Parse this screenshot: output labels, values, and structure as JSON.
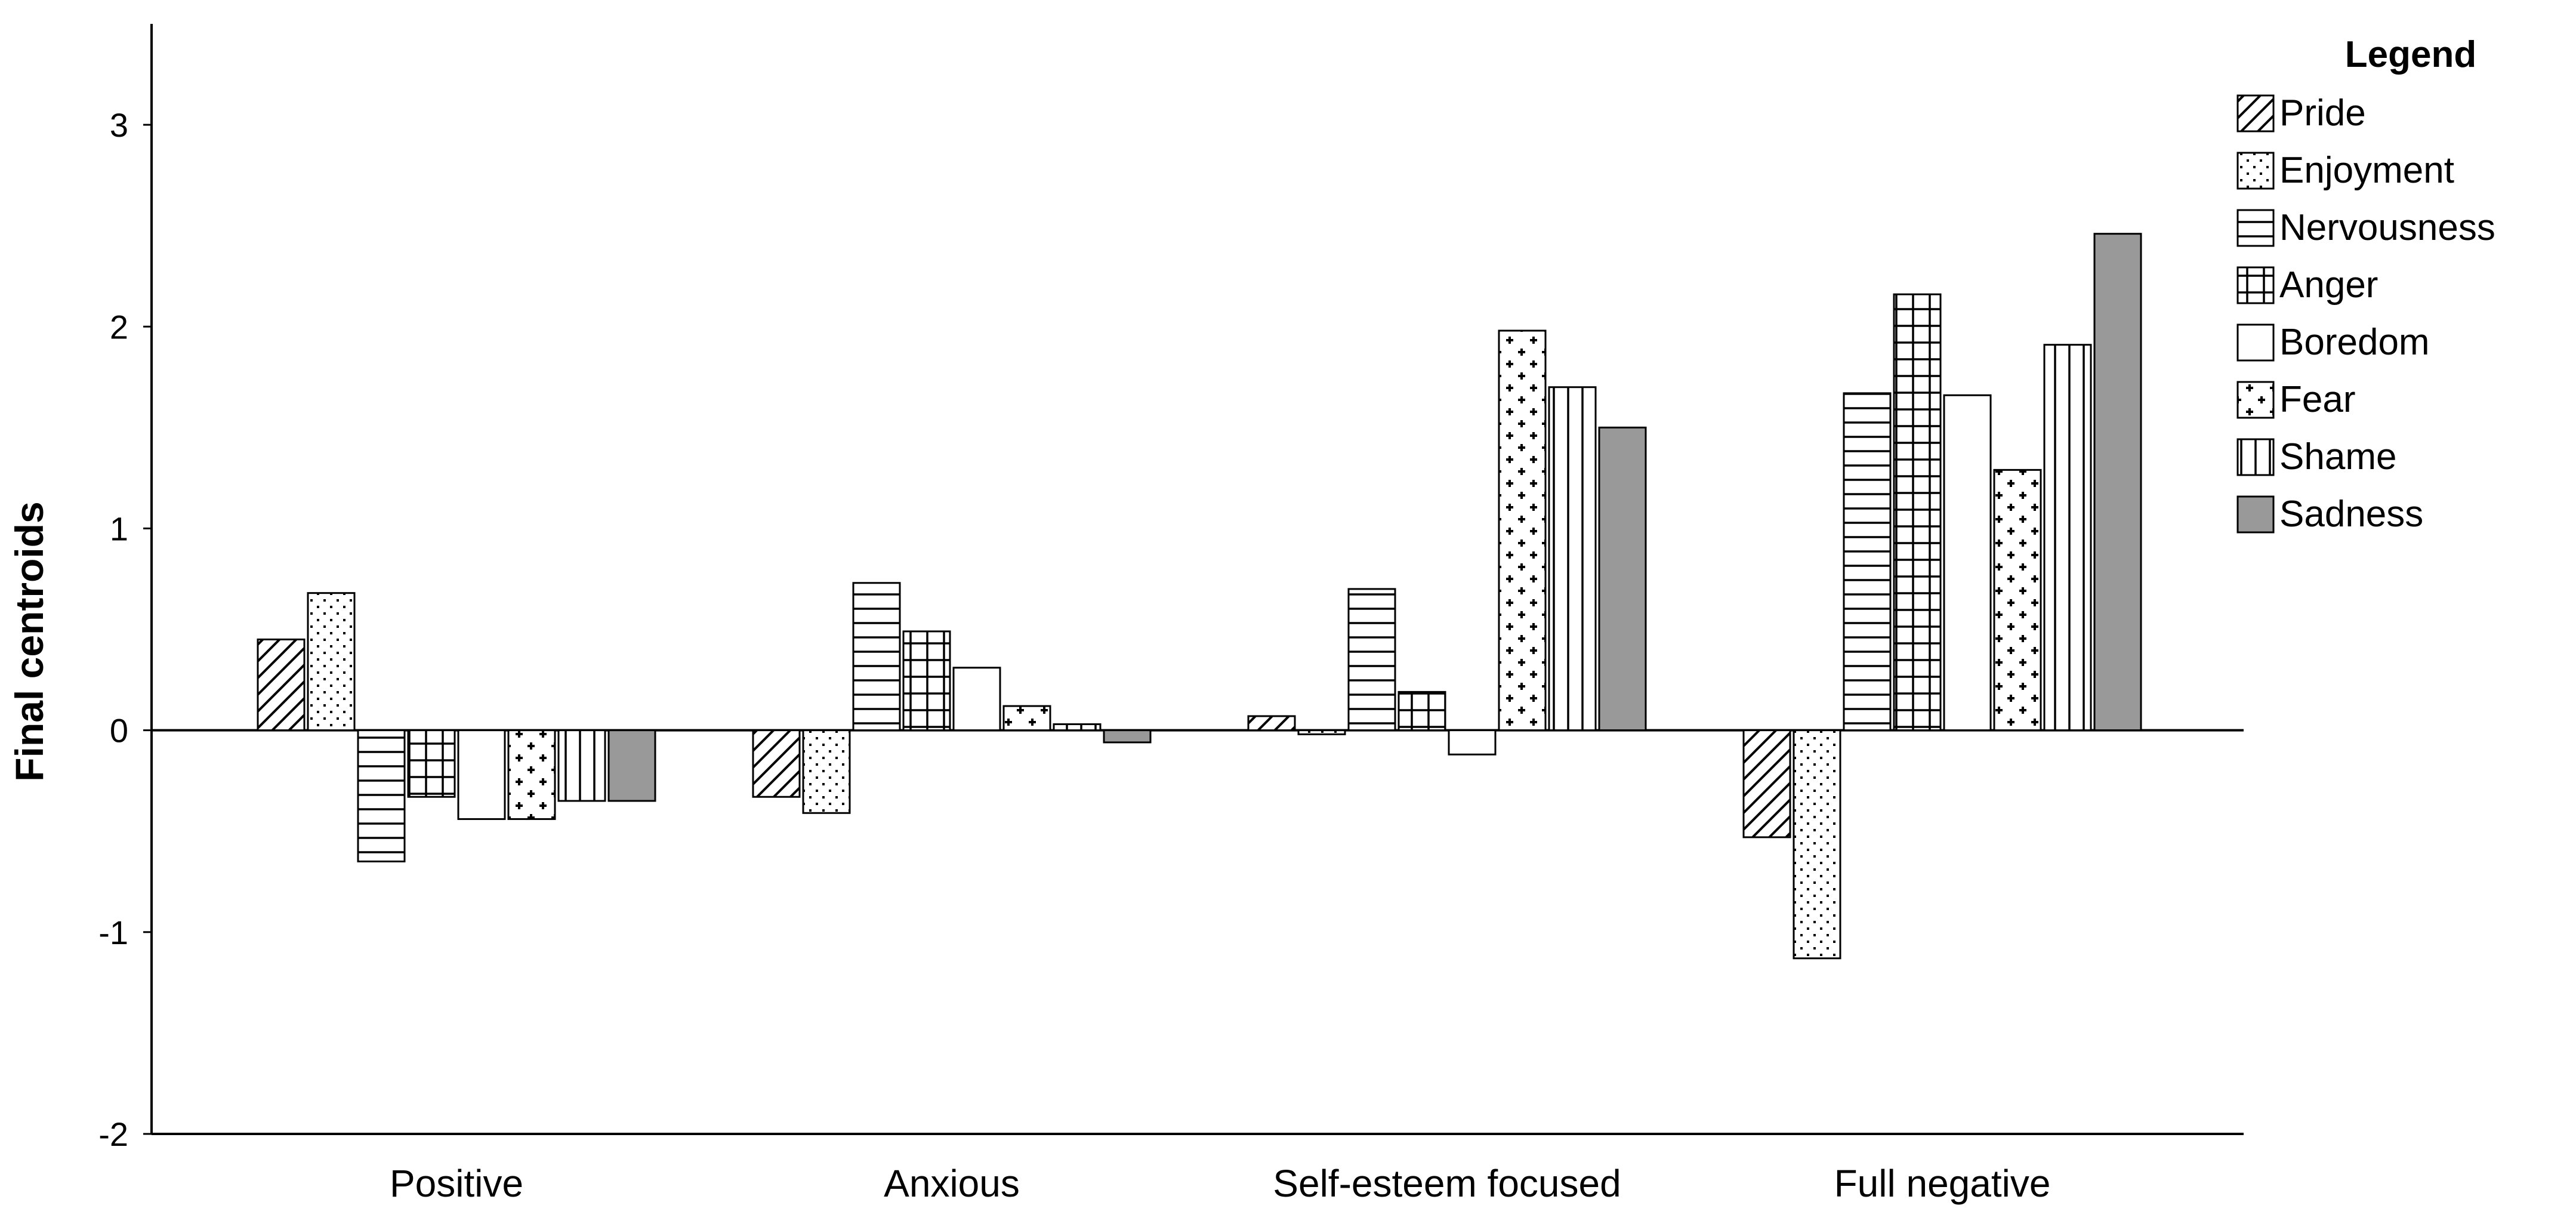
{
  "chart_data": {
    "type": "bar",
    "title": "",
    "xlabel": "",
    "ylabel": "Final centroids",
    "ylim": [
      -2,
      3.5
    ],
    "yticks": [
      -2,
      -1,
      0,
      1,
      2,
      3
    ],
    "ytick_labels": [
      "-2",
      "-1",
      "0",
      "1",
      "2",
      "3"
    ],
    "categories": [
      "Positive",
      "Anxious",
      "Self-esteem focused",
      "Full negative"
    ],
    "grid": false,
    "legend": {
      "title": "Legend",
      "position": "right"
    },
    "series": [
      {
        "name": "Pride",
        "pattern": "diagonal",
        "values": [
          0.45,
          -0.33,
          0.07,
          -0.53
        ]
      },
      {
        "name": "Enjoyment",
        "pattern": "dots",
        "values": [
          0.68,
          -0.41,
          -0.02,
          -1.13
        ]
      },
      {
        "name": "Nervousness",
        "pattern": "horizontal",
        "values": [
          -0.65,
          0.73,
          0.7,
          1.67
        ]
      },
      {
        "name": "Anger",
        "pattern": "grid",
        "values": [
          -0.33,
          0.49,
          0.19,
          2.16
        ]
      },
      {
        "name": "Boredom",
        "pattern": "none",
        "values": [
          -0.44,
          0.31,
          -0.12,
          1.66
        ]
      },
      {
        "name": "Fear",
        "pattern": "crosses",
        "values": [
          -0.44,
          0.12,
          1.98,
          1.29
        ]
      },
      {
        "name": "Shame",
        "pattern": "vertical",
        "values": [
          -0.35,
          0.03,
          1.7,
          1.91
        ]
      },
      {
        "name": "Sadness",
        "pattern": "solid",
        "values": [
          -0.35,
          -0.06,
          1.5,
          2.46
        ]
      }
    ],
    "colors": {
      "bar_fill": "#ffffff",
      "bar_stroke": "#000000",
      "sadness_fill": "#999999",
      "axis": "#000000"
    }
  }
}
